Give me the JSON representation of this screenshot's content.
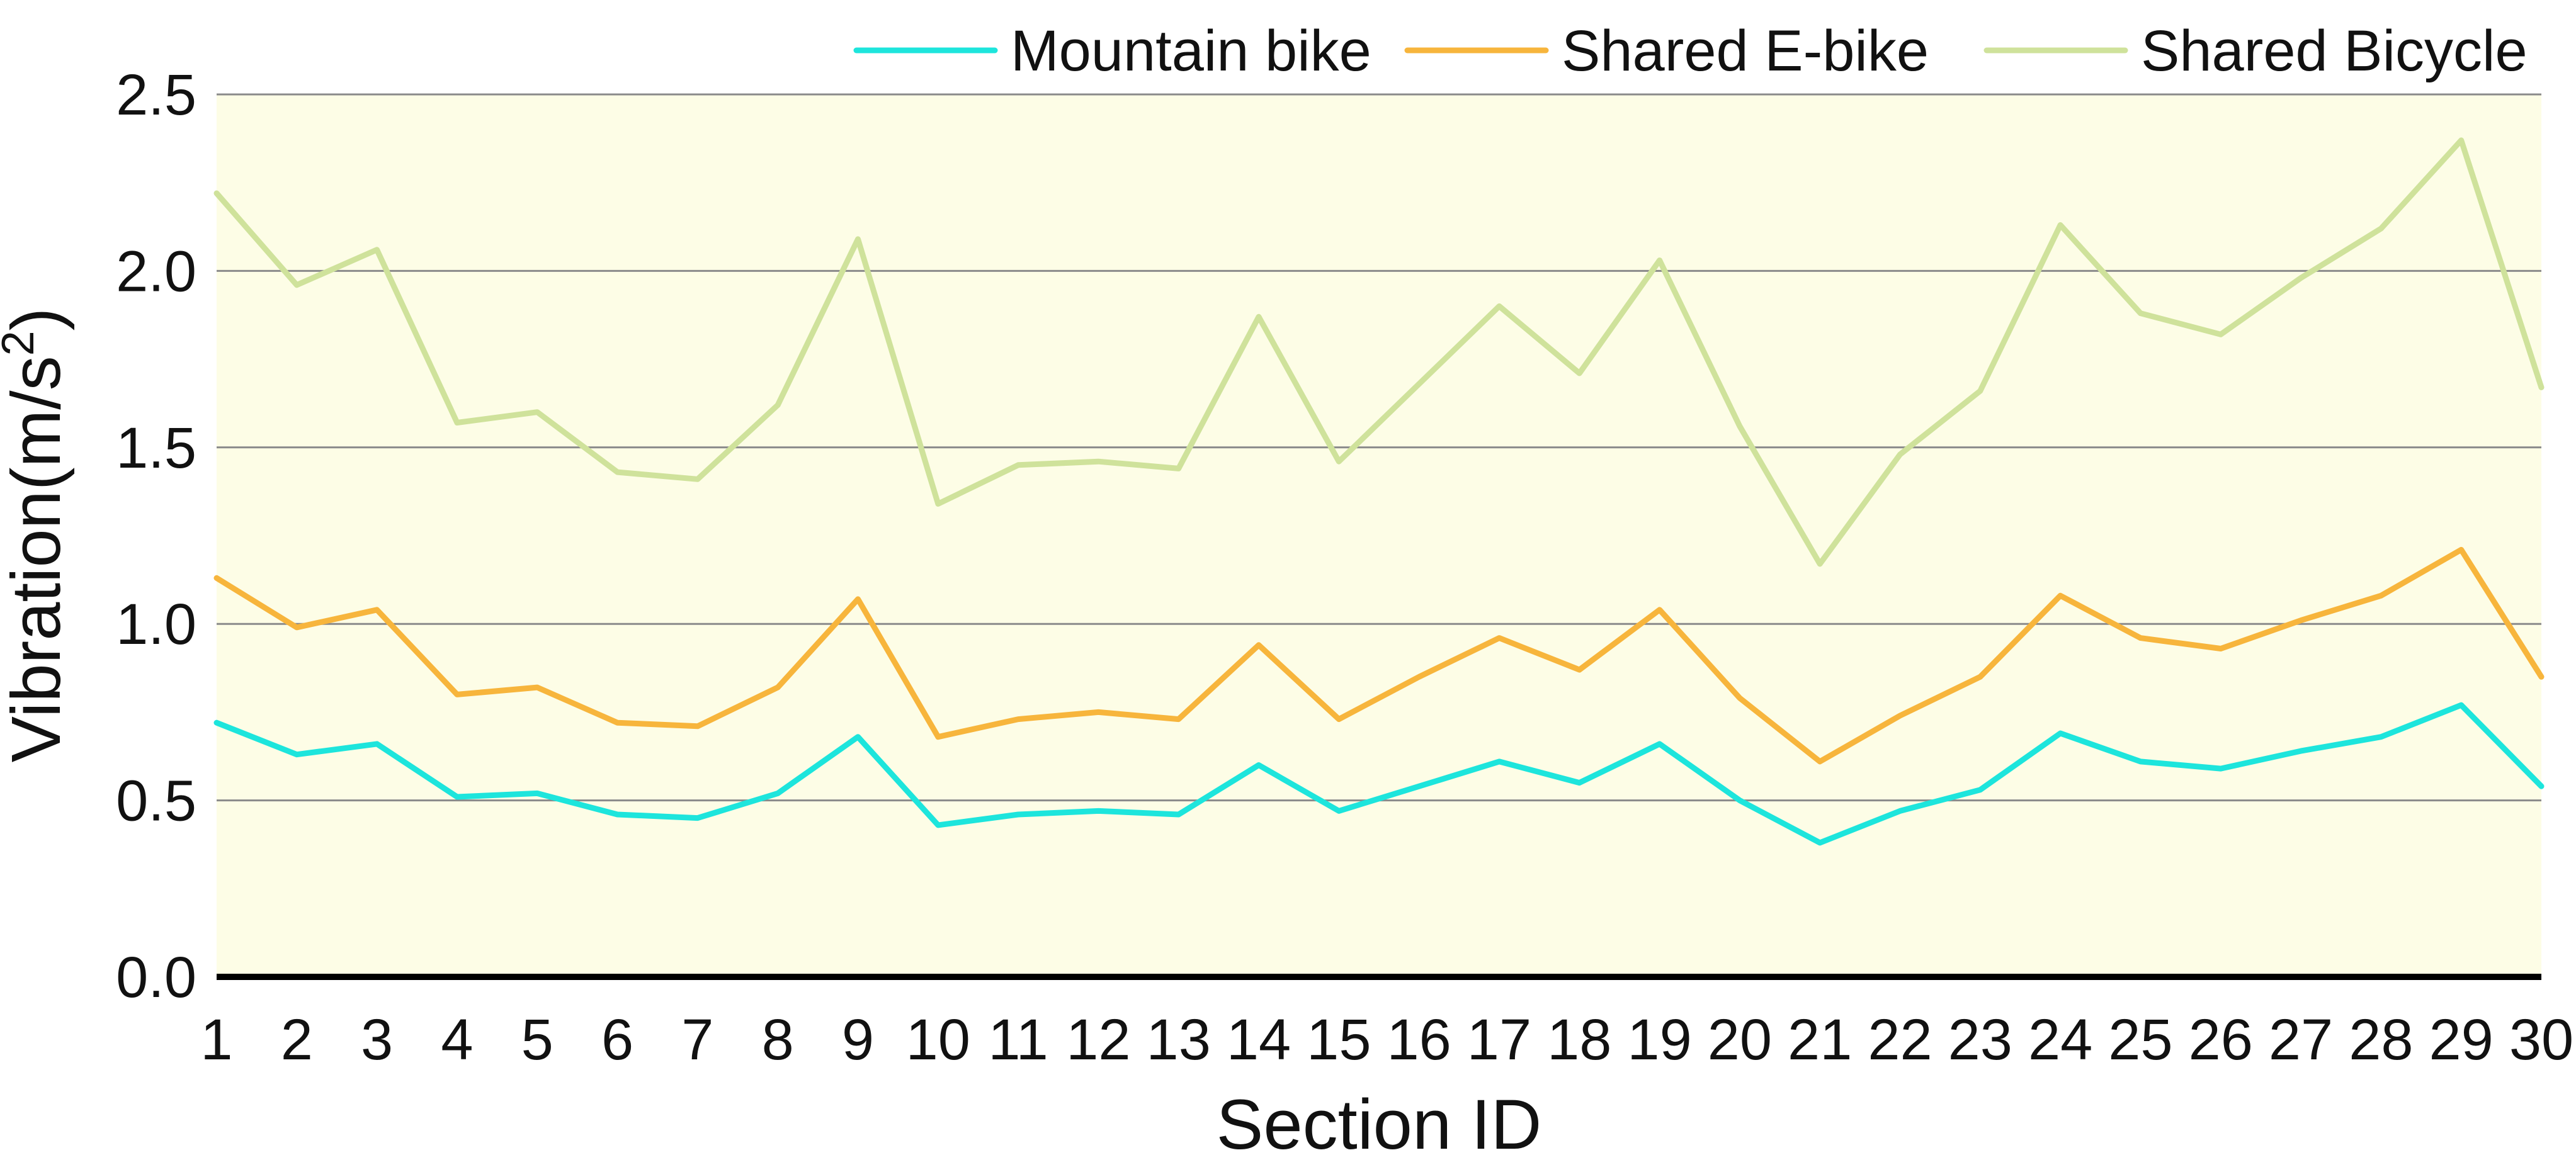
{
  "chart_data": {
    "type": "line",
    "title": "",
    "xlabel": "Section ID",
    "ylabel": "Vibration(m/s",
    "ylabel_superscript": "2",
    "ylabel_close": ")",
    "xlim": [
      1,
      30
    ],
    "ylim": [
      0,
      2.5
    ],
    "y_ticks": [
      "0.0",
      "0.5",
      "1.0",
      "1.5",
      "2.0",
      "2.5"
    ],
    "x": [
      1,
      2,
      3,
      4,
      5,
      6,
      7,
      8,
      9,
      10,
      11,
      12,
      13,
      14,
      15,
      16,
      17,
      18,
      19,
      20,
      21,
      22,
      23,
      24,
      25,
      26,
      27,
      28,
      29,
      30
    ],
    "grid": "horizontal",
    "legend_position": "top-right",
    "background_color": "#fdfde6",
    "series": [
      {
        "name": "Mountain bike",
        "color": "#1de5dc",
        "values": [
          0.72,
          0.63,
          0.66,
          0.51,
          0.52,
          0.46,
          0.45,
          0.52,
          0.68,
          0.43,
          0.46,
          0.47,
          0.46,
          0.6,
          0.47,
          0.54,
          0.61,
          0.55,
          0.66,
          0.5,
          0.38,
          0.47,
          0.53,
          0.69,
          0.61,
          0.59,
          0.64,
          0.68,
          0.77,
          0.54
        ]
      },
      {
        "name": "Shared E-bike",
        "color": "#f7b53c",
        "values": [
          1.13,
          0.99,
          1.04,
          0.8,
          0.82,
          0.72,
          0.71,
          0.82,
          1.07,
          0.68,
          0.73,
          0.75,
          0.73,
          0.94,
          0.73,
          0.85,
          0.96,
          0.87,
          1.04,
          0.79,
          0.61,
          0.74,
          0.85,
          1.08,
          0.96,
          0.93,
          1.01,
          1.08,
          1.21,
          0.85
        ]
      },
      {
        "name": "Shared Bicycle",
        "color": "#cfe29b",
        "values": [
          2.22,
          1.96,
          2.06,
          1.57,
          1.6,
          1.43,
          1.41,
          1.62,
          2.09,
          1.34,
          1.45,
          1.46,
          1.44,
          1.87,
          1.46,
          1.68,
          1.9,
          1.71,
          2.03,
          1.56,
          1.17,
          1.48,
          1.66,
          2.13,
          1.88,
          1.82,
          1.98,
          2.12,
          2.37,
          1.67
        ]
      }
    ]
  }
}
